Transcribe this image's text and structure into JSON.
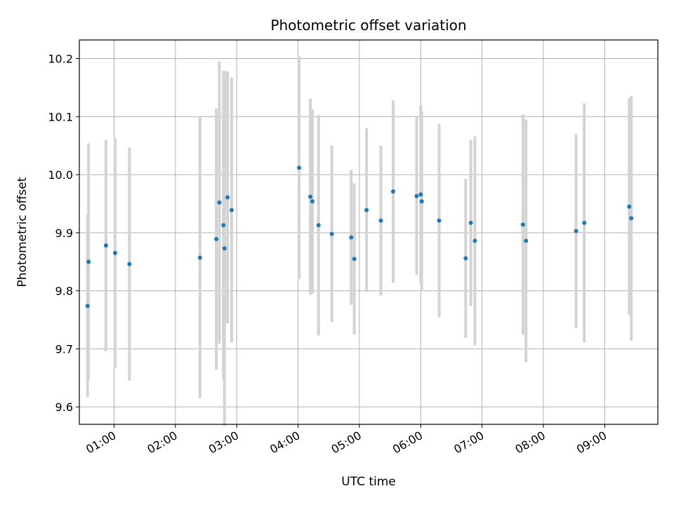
{
  "chart_data": {
    "type": "scatter",
    "title": "Photometric offset variation",
    "xlabel": "UTC time",
    "ylabel": "Photometric offset",
    "xlim": [
      "00:26",
      "09:52"
    ],
    "ylim": [
      9.57,
      10.232
    ],
    "x_ticks": [
      "01:00",
      "02:00",
      "03:00",
      "04:00",
      "05:00",
      "06:00",
      "07:00",
      "08:00",
      "09:00"
    ],
    "y_ticks": [
      9.6,
      9.7,
      9.8,
      9.9,
      10.0,
      10.1,
      10.2
    ],
    "grid": true,
    "point_color": "#1f77b4",
    "errorbar_color": "#d3d3d3",
    "series": [
      {
        "points": [
          {
            "x": "00:34",
            "y": 9.774,
            "err": 0.157
          },
          {
            "x": "00:35",
            "y": 9.85,
            "err": 0.204
          },
          {
            "x": "00:52",
            "y": 9.878,
            "err": 0.182
          },
          {
            "x": "01:01",
            "y": 9.865,
            "err": 0.198
          },
          {
            "x": "01:15",
            "y": 9.846,
            "err": 0.201
          },
          {
            "x": "02:24",
            "y": 9.857,
            "err": 0.242
          },
          {
            "x": "02:40",
            "y": 9.889,
            "err": 0.225
          },
          {
            "x": "02:43",
            "y": 9.952,
            "err": 0.243
          },
          {
            "x": "02:47",
            "y": 9.913,
            "err": 0.266
          },
          {
            "x": "02:48",
            "y": 9.873,
            "err": 0.306
          },
          {
            "x": "02:51",
            "y": 9.961,
            "err": 0.217
          },
          {
            "x": "02:55",
            "y": 9.939,
            "err": 0.228
          },
          {
            "x": "04:01",
            "y": 10.012,
            "err": 0.192
          },
          {
            "x": "04:12",
            "y": 9.962,
            "err": 0.169
          },
          {
            "x": "04:14",
            "y": 9.954,
            "err": 0.159
          },
          {
            "x": "04:20",
            "y": 9.913,
            "err": 0.19
          },
          {
            "x": "04:33",
            "y": 9.898,
            "err": 0.152
          },
          {
            "x": "04:52",
            "y": 9.892,
            "err": 0.116
          },
          {
            "x": "04:55",
            "y": 9.855,
            "err": 0.13
          },
          {
            "x": "05:07",
            "y": 9.939,
            "err": 0.141
          },
          {
            "x": "05:21",
            "y": 9.921,
            "err": 0.129
          },
          {
            "x": "05:33",
            "y": 9.971,
            "err": 0.157
          },
          {
            "x": "05:56",
            "y": 9.963,
            "err": 0.136
          },
          {
            "x": "06:00",
            "y": 9.966,
            "err": 0.153
          },
          {
            "x": "06:01",
            "y": 9.954,
            "err": 0.155
          },
          {
            "x": "06:18",
            "y": 9.921,
            "err": 0.167
          },
          {
            "x": "06:44",
            "y": 9.856,
            "err": 0.137
          },
          {
            "x": "06:49",
            "y": 9.917,
            "err": 0.143
          },
          {
            "x": "06:53",
            "y": 9.886,
            "err": 0.18
          },
          {
            "x": "07:40",
            "y": 9.914,
            "err": 0.19
          },
          {
            "x": "07:43",
            "y": 9.886,
            "err": 0.209
          },
          {
            "x": "08:32",
            "y": 9.903,
            "err": 0.167
          },
          {
            "x": "08:40",
            "y": 9.917,
            "err": 0.206
          },
          {
            "x": "09:24",
            "y": 9.945,
            "err": 0.187
          },
          {
            "x": "09:26",
            "y": 9.925,
            "err": 0.211
          }
        ]
      }
    ]
  }
}
